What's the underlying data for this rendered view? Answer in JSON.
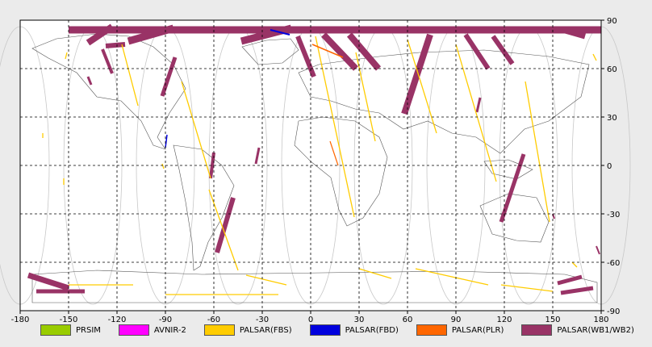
{
  "chart_data": {
    "type": "map",
    "xlim": [
      -180,
      180
    ],
    "ylim": [
      -90,
      90
    ],
    "x_ticks": [
      -180,
      -150,
      -120,
      -90,
      -60,
      -30,
      0,
      30,
      60,
      90,
      120,
      150,
      180
    ],
    "y_ticks_right": [
      90,
      60,
      30,
      0,
      -30,
      -60,
      -90
    ],
    "grid": true,
    "legend_placement": "bottom",
    "series": [
      {
        "name": "PRSIM",
        "color": "#99cc00"
      },
      {
        "name": "AVNIR-2",
        "color": "#ff00ff"
      },
      {
        "name": "PALSAR(FBS)",
        "color": "#ffcc00"
      },
      {
        "name": "PALSAR(FBD)",
        "color": "#0000dd"
      },
      {
        "name": "PALSAR(PLR)",
        "color": "#ff6600"
      },
      {
        "name": "PALSAR(WB1/WB2)",
        "color": "#993366"
      }
    ],
    "strips": {
      "wb": [
        {
          "lon1": -127,
          "lat1": 74,
          "lon2": -115,
          "lat2": 75,
          "w": 6
        },
        {
          "lon1": -150,
          "lat1": 84,
          "lon2": 180,
          "lat2": 84,
          "w": 9
        },
        {
          "lon1": -138,
          "lat1": 76,
          "lon2": -123,
          "lat2": 86,
          "w": 8
        },
        {
          "lon1": -129,
          "lat1": 72,
          "lon2": -123,
          "lat2": 57,
          "w": 4
        },
        {
          "lon1": -113,
          "lat1": 77,
          "lon2": -85,
          "lat2": 85,
          "w": 9
        },
        {
          "lon1": -84,
          "lat1": 67,
          "lon2": -92,
          "lat2": 43,
          "w": 5
        },
        {
          "lon1": -43,
          "lat1": 77,
          "lon2": -12,
          "lat2": 85,
          "w": 9
        },
        {
          "lon1": -8,
          "lat1": 80,
          "lon2": 2,
          "lat2": 55,
          "w": 6
        },
        {
          "lon1": 8,
          "lat1": 81,
          "lon2": 28,
          "lat2": 60,
          "w": 8
        },
        {
          "lon1": 24,
          "lat1": 81,
          "lon2": 42,
          "lat2": 60,
          "w": 8
        },
        {
          "lon1": 74,
          "lat1": 81,
          "lon2": 58,
          "lat2": 32,
          "w": 8
        },
        {
          "lon1": 96,
          "lat1": 81,
          "lon2": 110,
          "lat2": 60,
          "w": 6
        },
        {
          "lon1": 113,
          "lat1": 80,
          "lon2": 125,
          "lat2": 63,
          "w": 6
        },
        {
          "lon1": 156,
          "lat1": 84,
          "lon2": 170,
          "lat2": 80,
          "w": 7
        },
        {
          "lon1": -60,
          "lat1": 8,
          "lon2": -62,
          "lat2": -8,
          "w": 4
        },
        {
          "lon1": -32,
          "lat1": 11,
          "lon2": -34,
          "lat2": 1,
          "w": 3
        },
        {
          "lon1": -48,
          "lat1": -20,
          "lon2": -58,
          "lat2": -54,
          "w": 6
        },
        {
          "lon1": 132,
          "lat1": 7,
          "lon2": 118,
          "lat2": -35,
          "w": 5
        },
        {
          "lon1": 105,
          "lat1": 42,
          "lon2": 103,
          "lat2": 33,
          "w": 3
        },
        {
          "lon1": -175,
          "lat1": -68,
          "lon2": -150,
          "lat2": -76,
          "w": 7
        },
        {
          "lon1": -170,
          "lat1": -78,
          "lon2": -140,
          "lat2": -78,
          "w": 5
        },
        {
          "lon1": 153,
          "lat1": -73,
          "lon2": 168,
          "lat2": -69,
          "w": 5
        },
        {
          "lon1": 155,
          "lat1": -79,
          "lon2": 175,
          "lat2": -76,
          "w": 5
        },
        {
          "lon1": -138,
          "lat1": 55,
          "lon2": -136,
          "lat2": 50,
          "w": 3
        },
        {
          "lon1": 177,
          "lat1": -50,
          "lon2": 179,
          "lat2": -55,
          "w": 2
        },
        {
          "lon1": 150,
          "lat1": -30,
          "lon2": 151,
          "lat2": -33,
          "w": 2
        }
      ],
      "fbs": [
        {
          "lon1": -117,
          "lat1": 75,
          "lon2": -107,
          "lat2": 37,
          "w": 1.3
        },
        {
          "lon1": -80,
          "lat1": 52,
          "lon2": -62,
          "lat2": -8,
          "w": 1.3
        },
        {
          "lon1": -63,
          "lat1": -15,
          "lon2": -45,
          "lat2": -65,
          "w": 1.3
        },
        {
          "lon1": 28,
          "lat1": 70,
          "lon2": 40,
          "lat2": 15,
          "w": 1.3
        },
        {
          "lon1": 60,
          "lat1": 78,
          "lon2": 78,
          "lat2": 20,
          "w": 1.3
        },
        {
          "lon1": 90,
          "lat1": 75,
          "lon2": 115,
          "lat2": -10,
          "w": 1.3
        },
        {
          "lon1": 3,
          "lat1": 80,
          "lon2": 27,
          "lat2": -32,
          "w": 1.3
        },
        {
          "lon1": 133,
          "lat1": 52,
          "lon2": 148,
          "lat2": -35,
          "w": 1.3
        },
        {
          "lon1": -150,
          "lat1": -74,
          "lon2": -110,
          "lat2": -74,
          "w": 1.3
        },
        {
          "lon1": -40,
          "lat1": -68,
          "lon2": -15,
          "lat2": -74,
          "w": 1.3
        },
        {
          "lon1": 65,
          "lat1": -64,
          "lon2": 110,
          "lat2": -74,
          "w": 1.3
        },
        {
          "lon1": 30,
          "lat1": -64,
          "lon2": 50,
          "lat2": -70,
          "w": 1.3
        },
        {
          "lon1": 118,
          "lat1": -74,
          "lon2": 150,
          "lat2": -78,
          "w": 1.3
        },
        {
          "lon1": -90,
          "lat1": -80,
          "lon2": -20,
          "lat2": -80,
          "w": 1.3
        },
        {
          "lon1": -151,
          "lat1": 70,
          "lon2": -152,
          "lat2": 66,
          "w": 1.3
        },
        {
          "lon1": 175,
          "lat1": 69,
          "lon2": 177,
          "lat2": 65,
          "w": 1.3
        },
        {
          "lon1": -166,
          "lat1": 20,
          "lon2": -166,
          "lat2": 17,
          "w": 1.3
        },
        {
          "lon1": -153,
          "lat1": -8,
          "lon2": -153,
          "lat2": -12,
          "w": 1.3
        },
        {
          "lon1": -92,
          "lat1": 1,
          "lon2": -91,
          "lat2": -2,
          "w": 1.3
        },
        {
          "lon1": 162,
          "lat1": -60,
          "lon2": 165,
          "lat2": -63,
          "w": 1.3
        }
      ],
      "fbd": [
        {
          "lon1": -89,
          "lat1": 19,
          "lon2": -90,
          "lat2": 11,
          "w": 1.5
        },
        {
          "lon1": -25,
          "lat1": 84,
          "lon2": -13,
          "lat2": 81,
          "w": 2
        }
      ],
      "plr": [
        {
          "lon1": 1,
          "lat1": 75,
          "lon2": 20,
          "lat2": 67,
          "w": 1.5
        },
        {
          "lon1": 12,
          "lat1": 15,
          "lon2": 17,
          "lat2": 0,
          "w": 1.2
        }
      ]
    }
  }
}
